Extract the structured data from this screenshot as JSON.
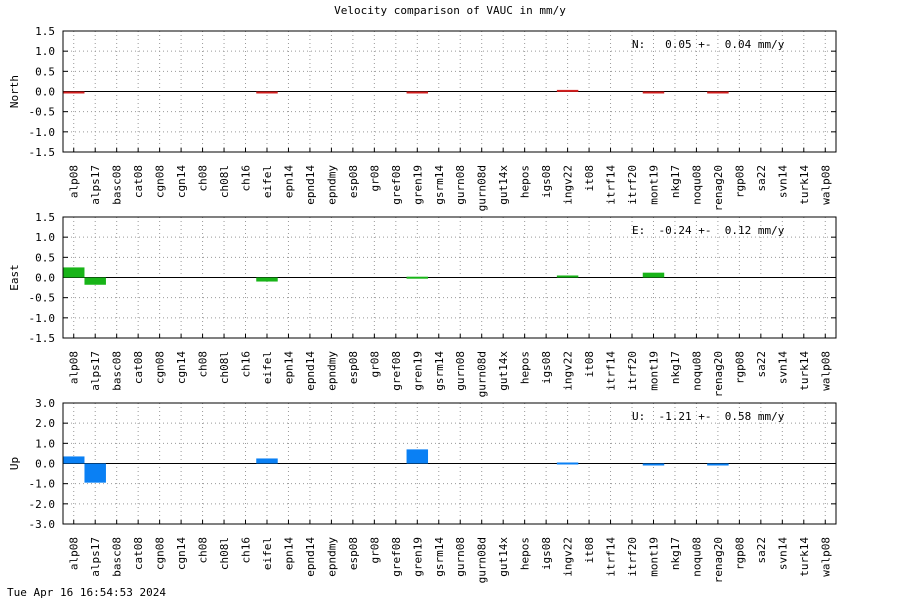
{
  "title": "Velocity comparison of VAUC in mm/y",
  "timestamp": "Tue Apr 16 16:54:53 2024",
  "chart_data": [
    {
      "type": "bar",
      "ylabel": "North",
      "ylim": [
        -1.5,
        1.5
      ],
      "yticks": [
        "1.5",
        "1.0",
        "0.5",
        "0.0",
        "-0.5",
        "-1.0",
        "-1.5"
      ],
      "grid": true,
      "categories": [
        "alp08",
        "alps17",
        "basc08",
        "cat08",
        "cgn08",
        "cgn14",
        "ch08",
        "ch08l",
        "ch16",
        "eifel",
        "epn14",
        "epnd14",
        "epndmy",
        "esp08",
        "gr08",
        "gref08",
        "gren19",
        "gsrm14",
        "gurn08",
        "gurn08d",
        "gut14x",
        "hepos",
        "igs08",
        "ingv22",
        "it08",
        "itrf14",
        "itrf20",
        "mont19",
        "nkg17",
        "noqu08",
        "renag20",
        "rgp08",
        "sa22",
        "svn14",
        "turk14",
        "walp08"
      ],
      "values": [
        -0.02,
        0,
        0,
        0,
        0,
        0,
        0,
        0,
        0,
        -0.04,
        0,
        0,
        0,
        0,
        0,
        0,
        -0.02,
        0,
        0,
        0,
        0,
        0,
        0,
        0.04,
        0,
        0,
        0,
        -0.02,
        0,
        0,
        -0.02,
        0,
        0,
        0,
        0,
        0
      ],
      "color": "#d42020",
      "annotation": "N:   0.05 +-  0.04 mm/y"
    },
    {
      "type": "bar",
      "ylabel": "East",
      "ylim": [
        -1.5,
        1.5
      ],
      "yticks": [
        "1.5",
        "1.0",
        "0.5",
        "0.0",
        "-0.5",
        "-1.0",
        "-1.5"
      ],
      "grid": true,
      "categories": [
        "alp08",
        "alps17",
        "basc08",
        "cat08",
        "cgn08",
        "cgn14",
        "ch08",
        "ch08l",
        "ch16",
        "eifel",
        "epn14",
        "epnd14",
        "epndmy",
        "esp08",
        "gr08",
        "gref08",
        "gren19",
        "gsrm14",
        "gurn08",
        "gurn08d",
        "gut14x",
        "hepos",
        "igs08",
        "ingv22",
        "it08",
        "itrf14",
        "itrf20",
        "mont19",
        "nkg17",
        "noqu08",
        "renag20",
        "rgp08",
        "sa22",
        "svn14",
        "turk14",
        "walp08"
      ],
      "values": [
        0.25,
        -0.18,
        0,
        0,
        0,
        0,
        0,
        0,
        0,
        -0.1,
        0,
        0,
        0,
        0,
        0,
        0,
        0.02,
        0,
        0,
        0,
        0,
        0,
        0,
        0.05,
        0,
        0,
        0,
        0.12,
        0,
        0,
        0,
        0,
        0,
        0,
        0,
        0
      ],
      "color": "#18b418",
      "annotation": "E:  -0.24 +-  0.12 mm/y"
    },
    {
      "type": "bar",
      "ylabel": "Up",
      "ylim": [
        -3.0,
        3.0
      ],
      "yticks": [
        "3.0",
        "2.0",
        "1.0",
        "0.0",
        "-1.0",
        "-2.0",
        "-3.0"
      ],
      "grid": true,
      "categories": [
        "alp08",
        "alps17",
        "basc08",
        "cat08",
        "cgn08",
        "cgn14",
        "ch08",
        "ch08l",
        "ch16",
        "eifel",
        "epn14",
        "epnd14",
        "epndmy",
        "esp08",
        "gr08",
        "gref08",
        "gren19",
        "gsrm14",
        "gurn08",
        "gurn08d",
        "gut14x",
        "hepos",
        "igs08",
        "ingv22",
        "it08",
        "itrf14",
        "itrf20",
        "mont19",
        "nkg17",
        "noqu08",
        "renag20",
        "rgp08",
        "sa22",
        "svn14",
        "turk14",
        "walp08"
      ],
      "values": [
        0.35,
        -0.95,
        0,
        0,
        0,
        0,
        0,
        0,
        0,
        0.25,
        0,
        0,
        0,
        0,
        0,
        0,
        0.7,
        0,
        0,
        0,
        0,
        0,
        0,
        0.05,
        0,
        0,
        0,
        -0.05,
        0,
        0,
        -0.05,
        0,
        0,
        0,
        0,
        0
      ],
      "color": "#0a80f4",
      "annotation": "U:  -1.21 +-  0.58 mm/y"
    }
  ]
}
